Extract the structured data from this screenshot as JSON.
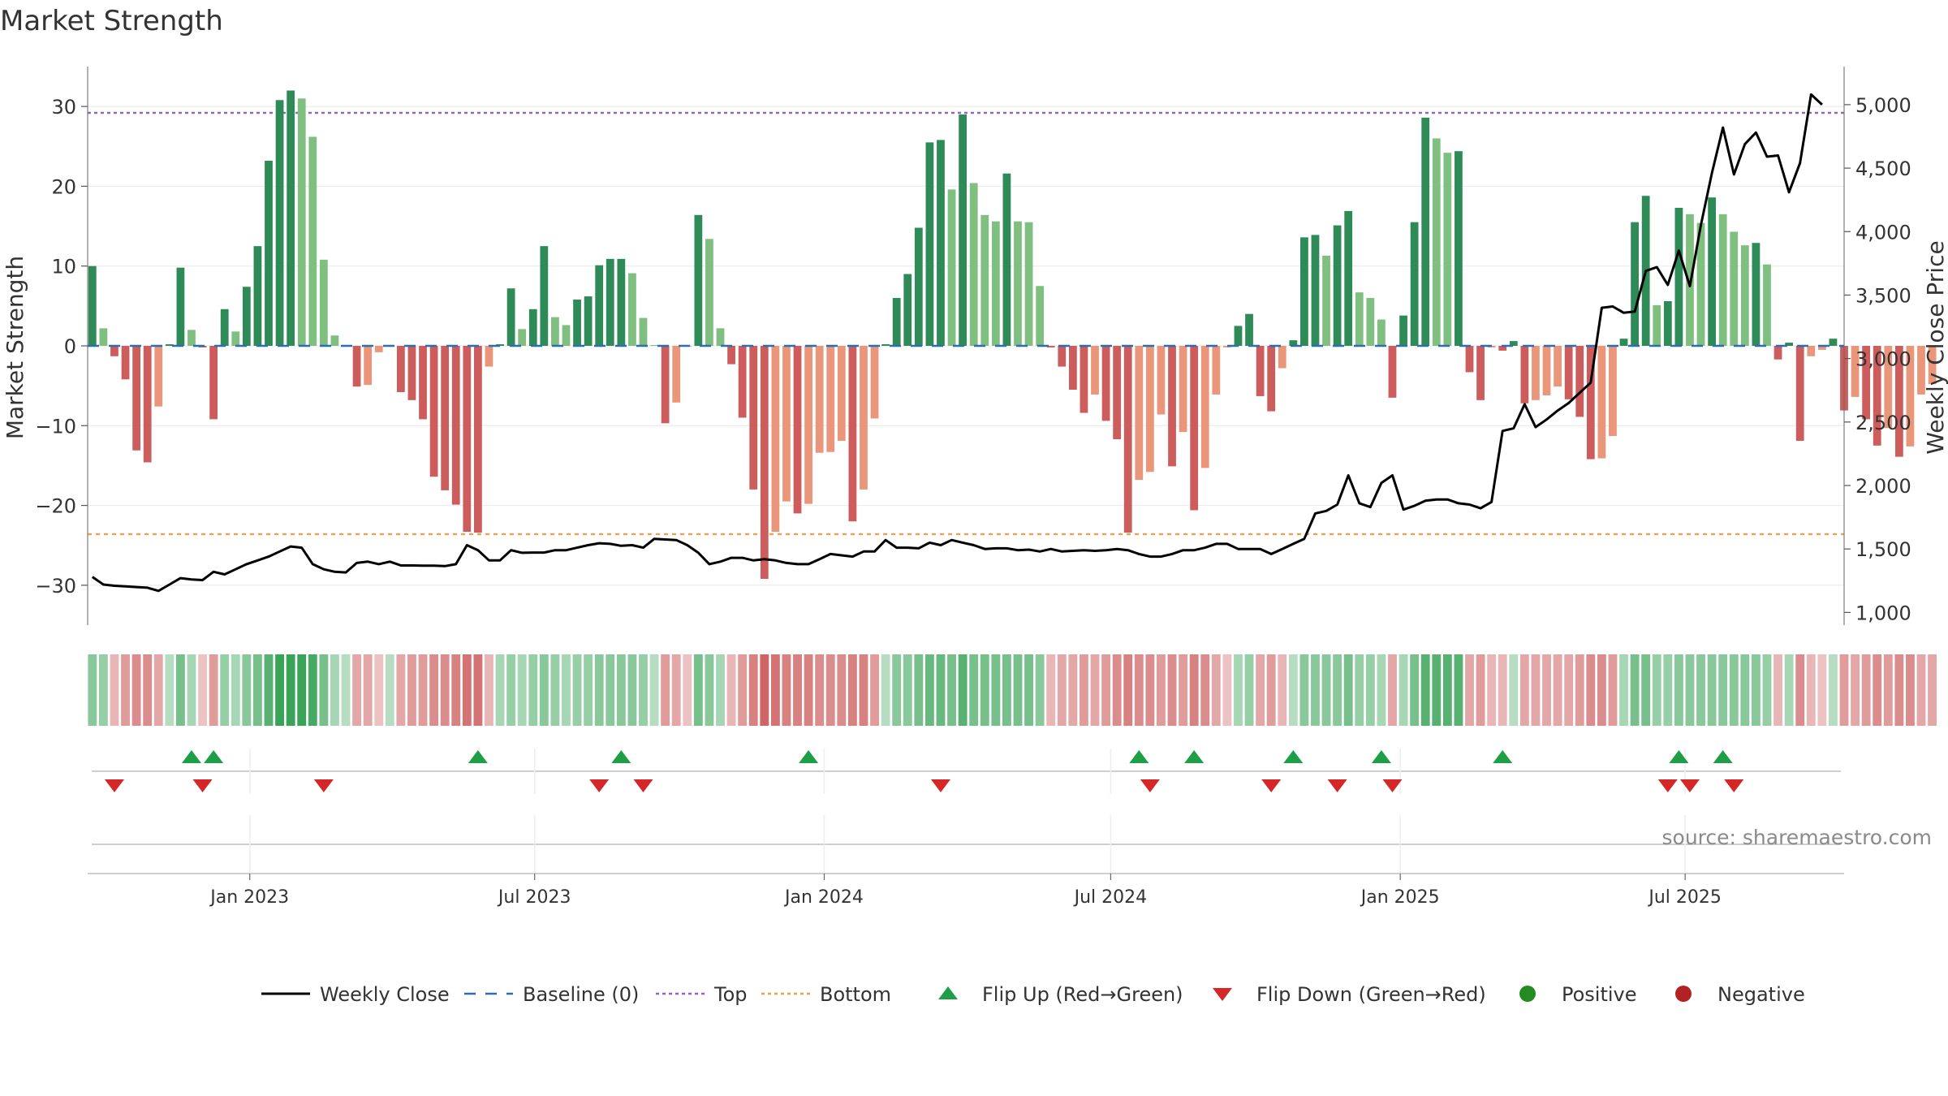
{
  "page": {
    "title": "Market Strength"
  },
  "chart_data": {
    "type": "bar",
    "title": "Market Strength",
    "ylabel": "Market Strength",
    "y2label": "Weekly Close Price",
    "ylim": [
      -35,
      35
    ],
    "y2lim": [
      900,
      5300
    ],
    "yticks": [
      30,
      20,
      10,
      0,
      -10,
      -20,
      -30
    ],
    "ytick_labels": [
      "30",
      "20",
      "10",
      "0",
      "−10",
      "−20",
      "−30"
    ],
    "y2ticks": [
      5000,
      4500,
      4000,
      3500,
      3000,
      2500,
      2000,
      1500,
      1000
    ],
    "y2tick_labels": [
      "5,000",
      "4,500",
      "4,000",
      "3,500",
      "3,000",
      "2,500",
      "2,000",
      "1,500",
      "1,000"
    ],
    "top_level": 29.2,
    "bottom_level": -23.6,
    "xlim": [
      "2022-09-20",
      "2025-10-10"
    ],
    "xticks": [
      "2023-01-01",
      "2023-07-01",
      "2024-01-01",
      "2024-07-01",
      "2025-01-01",
      "2025-07-01"
    ],
    "xtick_labels": [
      "Jan 2023",
      "Jul 2023",
      "Jan 2024",
      "Jul 2024",
      "Jan 2025",
      "Jul 2025"
    ],
    "start_week": "2022-09-23",
    "week_values": [
      10,
      2.2,
      -1.3,
      -4.2,
      -13.1,
      -14.6,
      -7.6,
      0.2,
      9.8,
      2,
      -0.2,
      -9.2,
      4.6,
      1.8,
      7.4,
      12.5,
      23.2,
      30.8,
      32,
      31,
      26.2,
      10.8,
      1.3,
      0.1,
      -5.1,
      -4.9,
      -0.8,
      0.1,
      -5.8,
      -6.8,
      -9.2,
      -16.4,
      -18.1,
      -19.9,
      -23.3,
      -23.4,
      -2.6,
      0.2,
      7.2,
      2.1,
      4.6,
      12.5,
      3.6,
      2.6,
      5.8,
      6.2,
      10.1,
      10.9,
      10.9,
      9.1,
      3.5,
      0.1,
      -9.7,
      -7.1,
      -0.1,
      16.4,
      13.4,
      2.2,
      -2.3,
      -9,
      -18,
      -29.2,
      -23.3,
      -19.5,
      -21,
      -19.8,
      -13.4,
      -13.3,
      -11.9,
      -22,
      -18,
      -9.1,
      0.2,
      6,
      9,
      14.8,
      25.5,
      25.8,
      19.6,
      29,
      20.4,
      16.4,
      15.6,
      21.6,
      15.6,
      15.5,
      7.5,
      -0.2,
      -2.6,
      -5.5,
      -8.4,
      -6.1,
      -9.4,
      -11.7,
      -23.4,
      -16.8,
      -15.8,
      -8.6,
      -15.1,
      -10.8,
      -20.6,
      -15.3,
      -6.1,
      -0.2,
      2.5,
      4,
      -6.3,
      -8.2,
      -2.8,
      0.7,
      13.6,
      13.9,
      11.3,
      15.1,
      16.9,
      6.7,
      6,
      3.3,
      -6.5,
      3.8,
      15.5,
      28.6,
      26,
      24.2,
      24.4,
      -3.3,
      -6.8,
      -0.2,
      -0.6,
      0.6,
      -7.2,
      -6.8,
      -6.2,
      -5.1,
      -6.7,
      -8.9,
      -14.2,
      -14.1,
      -11.3,
      0.9,
      15.5,
      18.8,
      5.1,
      5.6,
      17.3,
      16.5,
      15.4,
      18.6,
      16.5,
      14.3,
      12.6,
      12.9,
      10.2,
      -1.7,
      0.4,
      -11.9,
      -1.3,
      -0.5,
      0.9,
      -8.1,
      -6.4,
      -9.2,
      -12.5,
      -10.3,
      -13.9,
      -12.6,
      -6.1,
      -4.8
    ],
    "weekly_close": [
      1280,
      1220,
      1210,
      1205,
      1200,
      1195,
      1170,
      1220,
      1270,
      1260,
      1255,
      1320,
      1300,
      1340,
      1380,
      1410,
      1440,
      1480,
      1520,
      1510,
      1380,
      1340,
      1320,
      1315,
      1390,
      1400,
      1380,
      1400,
      1370,
      1370,
      1368,
      1368,
      1365,
      1380,
      1530,
      1490,
      1410,
      1410,
      1490,
      1470,
      1472,
      1472,
      1490,
      1490,
      1510,
      1530,
      1545,
      1540,
      1525,
      1530,
      1510,
      1580,
      1575,
      1570,
      1530,
      1470,
      1380,
      1400,
      1430,
      1430,
      1410,
      1420,
      1410,
      1390,
      1380,
      1380,
      1420,
      1460,
      1450,
      1440,
      1480,
      1480,
      1570,
      1510,
      1510,
      1505,
      1550,
      1530,
      1570,
      1550,
      1530,
      1500,
      1505,
      1505,
      1490,
      1495,
      1480,
      1500,
      1480,
      1485,
      1490,
      1485,
      1490,
      1500,
      1490,
      1460,
      1440,
      1440,
      1460,
      1490,
      1490,
      1510,
      1540,
      1540,
      1500,
      1500,
      1500,
      1460,
      1500,
      1540,
      1580,
      1780,
      1800,
      1850,
      2080,
      1860,
      1830,
      2020,
      2080,
      1810,
      1840,
      1880,
      1890,
      1890,
      1860,
      1850,
      1820,
      1870,
      2430,
      2450,
      2640,
      2460,
      2520,
      2590,
      2650,
      2730,
      2810,
      3400,
      3410,
      3360,
      3370,
      3690,
      3720,
      3580,
      3850,
      3570,
      4050,
      4460,
      4820,
      4450,
      4690,
      4780,
      4590,
      4600,
      4310,
      4540,
      5080,
      5000
    ],
    "strength_strip": [
      0.5,
      0.4,
      -0.3,
      -0.5,
      -0.6,
      -0.6,
      -0.4,
      0.2,
      0.6,
      0.3,
      -0.2,
      -0.5,
      0.4,
      0.3,
      0.5,
      0.6,
      0.8,
      1,
      1,
      1,
      0.9,
      0.6,
      0.3,
      0.2,
      -0.4,
      -0.4,
      -0.2,
      0.2,
      -0.4,
      -0.5,
      -0.5,
      -0.6,
      -0.6,
      -0.7,
      -0.8,
      -0.8,
      -0.3,
      0.3,
      0.4,
      0.3,
      0.4,
      0.5,
      0.4,
      0.3,
      0.4,
      0.4,
      0.5,
      0.5,
      0.5,
      0.5,
      0.4,
      0.2,
      -0.5,
      -0.4,
      -0.2,
      0.6,
      0.5,
      0.3,
      -0.3,
      -0.5,
      -0.7,
      -0.9,
      -0.8,
      -0.7,
      -0.7,
      -0.7,
      -0.6,
      -0.6,
      -0.6,
      -0.7,
      -0.7,
      -0.5,
      0.2,
      0.5,
      0.5,
      0.6,
      0.7,
      0.7,
      0.6,
      0.8,
      0.6,
      0.6,
      0.6,
      0.6,
      0.6,
      0.6,
      0.5,
      -0.3,
      -0.4,
      -0.4,
      -0.5,
      -0.4,
      -0.5,
      -0.6,
      -0.7,
      -0.6,
      -0.6,
      -0.5,
      -0.6,
      -0.5,
      -0.7,
      -0.6,
      -0.4,
      -0.2,
      0.3,
      0.4,
      -0.4,
      -0.5,
      -0.3,
      0.2,
      0.5,
      0.5,
      0.5,
      0.5,
      0.6,
      0.4,
      0.4,
      0.3,
      -0.4,
      0.3,
      0.6,
      0.8,
      0.8,
      0.8,
      0.8,
      -0.4,
      -0.5,
      -0.3,
      -0.3,
      0.2,
      -0.4,
      -0.4,
      -0.4,
      -0.4,
      -0.4,
      -0.5,
      -0.6,
      -0.6,
      -0.5,
      0.3,
      0.6,
      0.6,
      0.4,
      0.4,
      0.5,
      0.5,
      0.5,
      0.5,
      0.5,
      0.5,
      0.5,
      0.5,
      0.4,
      -0.3,
      0.3,
      -0.6,
      -0.3,
      -0.2,
      0.2,
      -0.5,
      -0.4,
      -0.5,
      -0.6,
      -0.5,
      -0.6,
      -0.6,
      -0.4,
      -0.4
    ],
    "flip_up_dates": [
      "2022-11-25",
      "2022-12-09",
      "2023-05-26",
      "2023-08-25",
      "2023-12-22",
      "2024-07-19",
      "2024-08-23",
      "2024-10-25",
      "2024-12-20",
      "2025-03-07",
      "2025-06-27",
      "2025-07-25"
    ],
    "flip_down_dates": [
      "2022-10-07",
      "2022-12-02",
      "2023-02-17",
      "2023-08-11",
      "2023-09-08",
      "2024-03-15",
      "2024-07-26",
      "2024-10-11",
      "2024-11-22",
      "2024-12-27",
      "2025-06-20",
      "2025-07-04",
      "2025-08-01"
    ],
    "legend": [
      {
        "label": "Weekly Close",
        "marker": "line",
        "color": "#000000"
      },
      {
        "label": "Baseline (0)",
        "marker": "dash",
        "color": "#2c6fb0"
      },
      {
        "label": "Top",
        "marker": "dot",
        "color": "#9467bd"
      },
      {
        "label": "Bottom",
        "marker": "dot",
        "color": "#f0a050"
      },
      {
        "label": "Flip Up (Red→Green)",
        "marker": "triangle-up",
        "color": "#1e9e46"
      },
      {
        "label": "Flip Down (Green→Red)",
        "marker": "triangle-down",
        "color": "#d62728"
      },
      {
        "label": "Positive",
        "marker": "circle",
        "color": "#228b22"
      },
      {
        "label": "Negative",
        "marker": "circle",
        "color": "#b22222"
      }
    ],
    "legend_position": "bottom",
    "grid": true,
    "source": "source: sharemaestro.com"
  },
  "colors": {
    "bar_dark_green": "#2e8b57",
    "bar_light_green": "#7fbf7f",
    "bar_dark_red": "#cd5c5c",
    "bar_light_red": "#e9967a",
    "top_line": "#9467bd",
    "bottom_line": "#f0a050",
    "baseline": "#2c6fb0",
    "close_line": "#000000",
    "flip_up": "#1e9e46",
    "flip_down": "#d62728",
    "strip_green": "#2e9e4e",
    "strip_red": "#c85050"
  }
}
